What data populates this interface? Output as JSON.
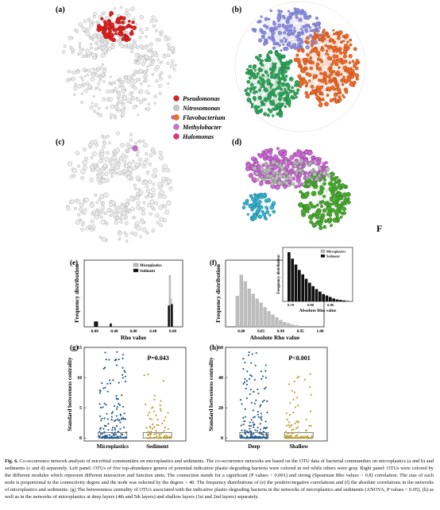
{
  "panels": {
    "a": "(a)",
    "b": "(b)",
    "c": "(c)",
    "d": "(d)",
    "e": "(e)",
    "f": "(f)",
    "g": "(g)",
    "h": "(h)"
  },
  "corner_letter": "F",
  "legend_top": [
    {
      "name": "Pseudomonas",
      "color": "#e02020"
    },
    {
      "name": "Nitrosomonas",
      "color": "#c8c8c8"
    },
    {
      "name": "Flavobacterium",
      "color": "#f07020"
    },
    {
      "name": "Methylobacter",
      "color": "#d070d0"
    },
    {
      "name": "Halomonas",
      "color": "#e0307a"
    }
  ],
  "network_colors": {
    "gray": "#cfcfcf",
    "red": "#e02020",
    "purple": "#8f8fe0",
    "orange": "#f06a2a",
    "green": "#2fa65a",
    "magenta": "#c86cd0",
    "cyan": "#34b4d0",
    "darkgreen": "#48a830"
  },
  "chart_data": [
    {
      "panel": "e",
      "type": "bar",
      "xlabel": "Rho value",
      "ylabel": "Frequency distribution",
      "xticks": [
        "-0.80",
        "-0.40",
        "0.00",
        "0.40",
        "0.80"
      ],
      "xlim": [
        -1.0,
        1.0
      ],
      "series": [
        {
          "name": "Microplastics",
          "color": "#bdbdbd",
          "x": [
            0.74,
            0.76
          ],
          "values": [
            0.78,
            0.42
          ]
        },
        {
          "name": "Sediment",
          "color": "#111111",
          "x": [
            -0.78,
            -0.74,
            -0.46,
            0.72,
            0.78
          ],
          "values": [
            0.08,
            0.08,
            0.05,
            0.32,
            0.34
          ]
        }
      ]
    },
    {
      "panel": "f",
      "type": "bar",
      "xlabel": "Absolute Rho value",
      "ylabel": "Frequency distribution",
      "xticks": [
        "0.80",
        "0.85",
        "0.90",
        "0.95",
        "1.00"
      ],
      "xlim": [
        0.76,
        1.01
      ],
      "series": [
        {
          "name": "Microplastics",
          "color": "#bdbdbd",
          "x": [
            0.79,
            0.8,
            0.81,
            0.82,
            0.83,
            0.84,
            0.85,
            0.86,
            0.87,
            0.88,
            0.89,
            0.9,
            0.91,
            0.92,
            0.93,
            0.94
          ],
          "values": [
            0.46,
            0.78,
            0.68,
            0.57,
            0.49,
            0.42,
            0.36,
            0.29,
            0.23,
            0.18,
            0.14,
            0.1,
            0.07,
            0.05,
            0.03,
            0.02
          ]
        }
      ],
      "inset": {
        "xlabel": "Absolute Rho value",
        "ylabel": "Frequency distribution",
        "xticks": [
          "0.70",
          "0.80",
          "0.90"
        ],
        "series": [
          {
            "name": "Microplastics",
            "color": "#bdbdbd",
            "values": []
          },
          {
            "name": "Sediment",
            "color": "#111111",
            "values": [
              1.0,
              0.87,
              0.75,
              0.64,
              0.55,
              0.46,
              0.38,
              0.31,
              0.25,
              0.2,
              0.15,
              0.12,
              0.09,
              0.06,
              0.04,
              0.03,
              0.02,
              0.01
            ]
          }
        ]
      }
    },
    {
      "panel": "g",
      "type": "scatter",
      "ylabel": "Standard betweeness centrality",
      "categories": [
        "Microplastics",
        "Sediment"
      ],
      "yticks": [
        "0",
        "5",
        "10",
        "15"
      ],
      "ylim": [
        -0.5,
        15
      ],
      "annotation": "P=0.043",
      "colors": [
        "#2b5f8a",
        "#b8a23a"
      ]
    },
    {
      "panel": "h",
      "type": "scatter",
      "ylabel": "Standard betweeness centrality",
      "categories": [
        "Deep",
        "Shallow"
      ],
      "yticks": [
        "0",
        "20",
        "40",
        "60"
      ],
      "ylim": [
        -2,
        60
      ],
      "annotation": "P<0.001",
      "colors": [
        "#2b5f8a",
        "#b8a23a"
      ]
    }
  ],
  "caption": {
    "label": "Fig. 6.",
    "text": " Co-occurrence network analysis of microbial communities on microplastics and sediments. The co-occurrence networks are based on the OTU data of bacterial communities on microplastics (a and b) and sediments (c and d) separately. Left panel: OTUs of five top-abundance genera of potential indicative plastic-degrading bacteria were colored in red while others were gray. Right panel: OTUs were colored by the different modules which represent different interaction and function units. The connection stands for a significant (P values < 0.001) and strong (Spearman Rho values > 0.8) correlation. The size of each node is proportional to the connectivity degree and the node was selected by the degree > 40. The frequency distributions of (e) the positive/negative correlations and (f) the absolute correlations in the networks of microplastics and sediments. (g) The betweenness centrality of OTUs associated with the indicative plastic-degrading bacteria in the networks of microplastics and sediments (ANOVA, P values < 0.05), (h) as well as in the networks of microplastics at deep layers (4th and 5th layers) and shallow layers (1st and 2nd layers) separately."
  }
}
